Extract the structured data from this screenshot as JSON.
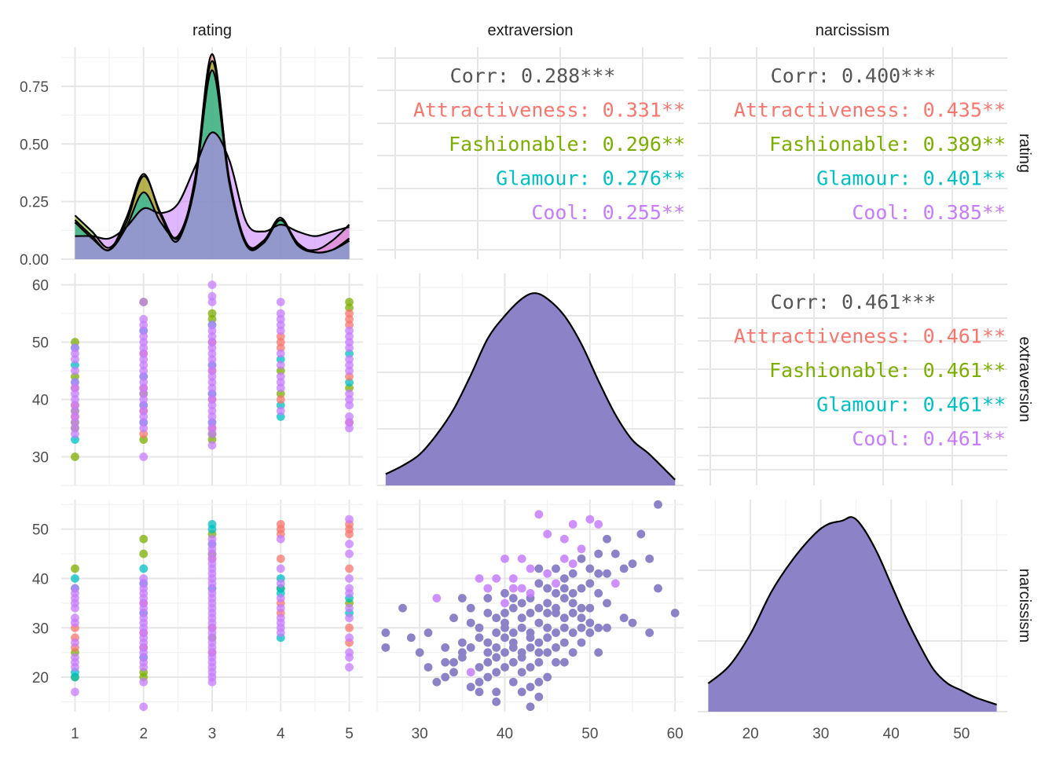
{
  "chart_data": {
    "type": "scatter",
    "matrix": "pairs",
    "variables": [
      "rating",
      "extraversion",
      "narcissism"
    ],
    "groups": [
      {
        "name": "Attractiveness",
        "color": "#F8766D"
      },
      {
        "name": "Fashionable",
        "color": "#7CAE00"
      },
      {
        "name": "Glamour",
        "color": "#00BFC4"
      },
      {
        "name": "Cool",
        "color": "#C77CFF"
      }
    ],
    "panel_fill": "#8C82C8",
    "grid": true,
    "axes": {
      "rating_x": {
        "lim": [
          0.8,
          5.2
        ],
        "ticks": [
          1,
          2,
          3,
          4,
          5
        ],
        "labels": [
          "1",
          "2",
          "3",
          "4",
          "5"
        ]
      },
      "rating_density_y": {
        "lim": [
          0,
          0.92
        ],
        "ticks": [
          0,
          0.25,
          0.5,
          0.75
        ],
        "labels": [
          "0.00",
          "0.25",
          "0.50",
          "0.75"
        ]
      },
      "extraversion_x": {
        "lim": [
          25,
          61
        ],
        "ticks": [
          30,
          40,
          50,
          60
        ],
        "labels": [
          "30",
          "40",
          "50",
          "60"
        ]
      },
      "extraversion_y": {
        "lim": [
          25,
          62
        ],
        "ticks": [
          30,
          40,
          50,
          60
        ],
        "labels": [
          "30",
          "40",
          "50",
          "60"
        ]
      },
      "narcissism_x": {
        "lim": [
          12.5,
          56.5
        ],
        "ticks": [
          20,
          30,
          40,
          50
        ],
        "labels": [
          "20",
          "30",
          "40",
          "50"
        ]
      },
      "narcissism_y": {
        "lim": [
          13,
          56
        ],
        "ticks": [
          20,
          30,
          40,
          50
        ],
        "labels": [
          "20",
          "30",
          "40",
          "50"
        ]
      }
    },
    "correlations": [
      {
        "pair": [
          "rating",
          "extraversion"
        ],
        "lines": [
          {
            "label": "Corr: 0.288***",
            "group": null
          },
          {
            "label": "Attractiveness: 0.331**",
            "group": "Attractiveness"
          },
          {
            "label": "Fashionable: 0.296**",
            "group": "Fashionable"
          },
          {
            "label": "Glamour: 0.276**",
            "group": "Glamour"
          },
          {
            "label": "Cool: 0.255**",
            "group": "Cool"
          }
        ]
      },
      {
        "pair": [
          "rating",
          "narcissism"
        ],
        "lines": [
          {
            "label": "Corr: 0.400***",
            "group": null
          },
          {
            "label": "Attractiveness: 0.435**",
            "group": "Attractiveness"
          },
          {
            "label": "Fashionable: 0.389**",
            "group": "Fashionable"
          },
          {
            "label": "Glamour: 0.401**",
            "group": "Glamour"
          },
          {
            "label": "Cool: 0.385**",
            "group": "Cool"
          }
        ]
      },
      {
        "pair": [
          "extraversion",
          "narcissism"
        ],
        "lines": [
          {
            "label": "Corr: 0.461***",
            "group": null
          },
          {
            "label": "Attractiveness: 0.461**",
            "group": "Attractiveness"
          },
          {
            "label": "Fashionable: 0.461**",
            "group": "Fashionable"
          },
          {
            "label": "Glamour: 0.461**",
            "group": "Glamour"
          },
          {
            "label": "Cool: 0.461**",
            "group": "Cool"
          }
        ]
      }
    ],
    "rating_density": {
      "x": [
        1,
        1.25,
        1.5,
        1.75,
        2,
        2.25,
        2.5,
        2.75,
        3,
        3.25,
        3.5,
        3.75,
        4,
        4.25,
        4.5,
        4.75,
        5
      ],
      "series": [
        {
          "group": "Attractiveness",
          "values": [
            0.17,
            0.1,
            0.04,
            0.18,
            0.37,
            0.19,
            0.08,
            0.35,
            0.89,
            0.34,
            0.06,
            0.07,
            0.17,
            0.06,
            0.04,
            0.08,
            0.15
          ]
        },
        {
          "group": "Fashionable",
          "values": [
            0.19,
            0.12,
            0.05,
            0.16,
            0.36,
            0.2,
            0.09,
            0.32,
            0.86,
            0.35,
            0.07,
            0.08,
            0.18,
            0.06,
            0.03,
            0.04,
            0.09
          ]
        },
        {
          "group": "Glamour",
          "values": [
            0.16,
            0.09,
            0.04,
            0.14,
            0.29,
            0.16,
            0.1,
            0.33,
            0.82,
            0.33,
            0.06,
            0.08,
            0.17,
            0.07,
            0.03,
            0.04,
            0.08
          ]
        },
        {
          "group": "Cool",
          "values": [
            0.1,
            0.1,
            0.09,
            0.14,
            0.22,
            0.2,
            0.24,
            0.4,
            0.55,
            0.43,
            0.16,
            0.12,
            0.15,
            0.12,
            0.1,
            0.12,
            0.14
          ]
        }
      ]
    },
    "extraversion_density": {
      "x": [
        26,
        28,
        30,
        32,
        34,
        36,
        38,
        40,
        42,
        43.5,
        45,
        47,
        49,
        51,
        53,
        55,
        57,
        60
      ],
      "y": [
        0.004,
        0.007,
        0.011,
        0.018,
        0.027,
        0.039,
        0.052,
        0.06,
        0.066,
        0.068,
        0.066,
        0.06,
        0.05,
        0.037,
        0.025,
        0.016,
        0.011,
        0.002
      ]
    },
    "narcissism_density": {
      "x": [
        14,
        17,
        20,
        23,
        26,
        29,
        31,
        33,
        34.5,
        36,
        38,
        40,
        42,
        44,
        46,
        48,
        50,
        52,
        55
      ],
      "y": [
        0.008,
        0.013,
        0.022,
        0.034,
        0.043,
        0.05,
        0.053,
        0.054,
        0.055,
        0.052,
        0.045,
        0.036,
        0.027,
        0.019,
        0.012,
        0.008,
        0.006,
        0.004,
        0.002
      ]
    },
    "rating_vs_extraversion": [
      {
        "x": 1,
        "group": "Fashionable",
        "y": [
          30,
          35,
          36,
          38,
          44,
          50
        ]
      },
      {
        "x": 1,
        "group": "Glamour",
        "y": [
          33,
          43,
          46,
          49
        ]
      },
      {
        "x": 1,
        "group": "Attractiveness",
        "y": [
          37,
          39,
          42
        ]
      },
      {
        "x": 1,
        "group": "Cool",
        "y": [
          34,
          35,
          36,
          37,
          38,
          39,
          40,
          41,
          42,
          43,
          45,
          47,
          48,
          49
        ]
      },
      {
        "x": 2,
        "group": "Fashionable",
        "y": [
          33,
          41,
          57
        ]
      },
      {
        "x": 2,
        "group": "Glamour",
        "y": [
          36,
          39,
          44,
          52
        ]
      },
      {
        "x": 2,
        "group": "Attractiveness",
        "y": [
          34,
          38,
          42,
          48
        ]
      },
      {
        "x": 2,
        "group": "Cool",
        "y": [
          30,
          35,
          36,
          37,
          38,
          39,
          40,
          41,
          42,
          43,
          44,
          45,
          46,
          47,
          48,
          49,
          50,
          51,
          52,
          53,
          54,
          57
        ]
      },
      {
        "x": 3,
        "group": "Fashionable",
        "y": [
          33,
          34,
          54,
          55
        ]
      },
      {
        "x": 3,
        "group": "Glamour",
        "y": [
          36,
          41,
          46,
          53
        ]
      },
      {
        "x": 3,
        "group": "Attractiveness",
        "y": [
          35,
          40,
          45,
          50
        ]
      },
      {
        "x": 3,
        "group": "Cool",
        "y": [
          32,
          34,
          35,
          36,
          37,
          38,
          39,
          40,
          41,
          42,
          43,
          44,
          45,
          46,
          47,
          48,
          49,
          50,
          51,
          52,
          53,
          57,
          58,
          60
        ]
      },
      {
        "x": 4,
        "group": "Fashionable",
        "y": [
          41,
          45
        ]
      },
      {
        "x": 4,
        "group": "Glamour",
        "y": [
          37,
          39,
          47
        ]
      },
      {
        "x": 4,
        "group": "Attractiveness",
        "y": [
          40,
          49,
          50,
          51
        ]
      },
      {
        "x": 4,
        "group": "Cool",
        "y": [
          38,
          42,
          43,
          44,
          46,
          48,
          52,
          53,
          54,
          55,
          57
        ]
      },
      {
        "x": 5,
        "group": "Fashionable",
        "y": [
          42,
          56,
          57
        ]
      },
      {
        "x": 5,
        "group": "Glamour",
        "y": [
          43,
          48
        ]
      },
      {
        "x": 5,
        "group": "Attractiveness",
        "y": [
          36,
          44,
          53,
          54,
          55
        ]
      },
      {
        "x": 5,
        "group": "Cool",
        "y": [
          35,
          36,
          37,
          39,
          40,
          41,
          45,
          46,
          47,
          49,
          50,
          51,
          52
        ]
      }
    ],
    "rating_vs_narcissism": [
      {
        "x": 1,
        "group": "Fashionable",
        "y": [
          20,
          25,
          42
        ]
      },
      {
        "x": 1,
        "group": "Glamour",
        "y": [
          20,
          21,
          38,
          40
        ]
      },
      {
        "x": 1,
        "group": "Attractiveness",
        "y": [
          26,
          28,
          30
        ]
      },
      {
        "x": 1,
        "group": "Cool",
        "y": [
          17,
          22,
          23,
          24,
          27,
          31,
          32,
          34,
          35,
          36,
          37,
          38
        ]
      },
      {
        "x": 2,
        "group": "Fashionable",
        "y": [
          20,
          21,
          45,
          48
        ]
      },
      {
        "x": 2,
        "group": "Glamour",
        "y": [
          24,
          33,
          39,
          42
        ]
      },
      {
        "x": 2,
        "group": "Attractiveness",
        "y": [
          26,
          29,
          35
        ]
      },
      {
        "x": 2,
        "group": "Cool",
        "y": [
          14,
          19,
          22,
          23,
          24,
          25,
          26,
          27,
          28,
          29,
          30,
          31,
          32,
          33,
          34,
          35,
          36,
          37,
          38,
          39,
          40
        ]
      },
      {
        "x": 3,
        "group": "Fashionable",
        "y": [
          28,
          45,
          49
        ]
      },
      {
        "x": 3,
        "group": "Glamour",
        "y": [
          38,
          47,
          50,
          51
        ]
      },
      {
        "x": 3,
        "group": "Attractiveness",
        "y": [
          25,
          30,
          44
        ]
      },
      {
        "x": 3,
        "group": "Cool",
        "y": [
          19,
          20,
          21,
          22,
          23,
          24,
          25,
          26,
          27,
          28,
          29,
          30,
          31,
          32,
          33,
          34,
          35,
          36,
          37,
          38,
          39,
          40,
          41,
          42,
          43,
          44,
          45,
          46,
          47,
          48
        ]
      },
      {
        "x": 4,
        "group": "Fashionable",
        "y": [
          38
        ]
      },
      {
        "x": 4,
        "group": "Glamour",
        "y": [
          28,
          37,
          38,
          40
        ]
      },
      {
        "x": 4,
        "group": "Attractiveness",
        "y": [
          33,
          35,
          44,
          49,
          50,
          51
        ]
      },
      {
        "x": 4,
        "group": "Cool",
        "y": [
          29,
          30,
          31,
          32,
          34,
          36,
          39,
          42,
          48
        ]
      },
      {
        "x": 5,
        "group": "Fashionable",
        "y": [
          35
        ]
      },
      {
        "x": 5,
        "group": "Glamour",
        "y": [
          33,
          36
        ]
      },
      {
        "x": 5,
        "group": "Attractiveness",
        "y": [
          27,
          30,
          42,
          49,
          50,
          51
        ]
      },
      {
        "x": 5,
        "group": "Cool",
        "y": [
          22,
          24,
          25,
          28,
          32,
          34,
          37,
          38,
          40,
          45,
          47,
          52
        ]
      }
    ],
    "extraversion_vs_narcissism": {
      "x": [
        26,
        26,
        28,
        29,
        30,
        31,
        31,
        32,
        32,
        33,
        33,
        33,
        34,
        34,
        34,
        35,
        35,
        35,
        35,
        36,
        36,
        36,
        36,
        36,
        37,
        37,
        37,
        37,
        37,
        37,
        38,
        38,
        38,
        38,
        38,
        38,
        38,
        39,
        39,
        39,
        39,
        39,
        39,
        39,
        39,
        40,
        40,
        40,
        40,
        40,
        40,
        40,
        40,
        40,
        41,
        41,
        41,
        41,
        41,
        41,
        41,
        41,
        41,
        42,
        42,
        42,
        42,
        42,
        42,
        42,
        42,
        42,
        43,
        43,
        43,
        43,
        43,
        43,
        43,
        43,
        43,
        43,
        44,
        44,
        44,
        44,
        44,
        44,
        44,
        44,
        44,
        44,
        45,
        45,
        45,
        45,
        45,
        45,
        45,
        45,
        45,
        46,
        46,
        46,
        46,
        46,
        46,
        46,
        46,
        47,
        47,
        47,
        47,
        47,
        47,
        47,
        47,
        47,
        48,
        48,
        48,
        48,
        48,
        48,
        48,
        48,
        49,
        49,
        49,
        49,
        49,
        49,
        49,
        50,
        50,
        50,
        50,
        50,
        50,
        51,
        51,
        51,
        51,
        51,
        51,
        52,
        52,
        52,
        52,
        53,
        53,
        54,
        54,
        55,
        55,
        56,
        57,
        57,
        58,
        58,
        60
      ],
      "y": [
        26,
        29,
        34,
        28,
        25,
        22,
        29,
        19,
        36,
        20,
        23,
        26,
        21,
        23,
        32,
        24,
        25,
        27,
        36,
        18,
        21,
        26,
        31,
        34,
        17,
        19,
        22,
        28,
        30,
        40,
        20,
        23,
        25,
        27,
        33,
        36,
        38,
        15,
        17,
        21,
        24,
        26,
        29,
        32,
        40,
        22,
        25,
        28,
        30,
        31,
        33,
        35,
        37,
        44,
        19,
        23,
        26,
        27,
        29,
        34,
        36,
        38,
        40,
        17,
        21,
        24,
        25,
        30,
        32,
        35,
        38,
        44,
        14,
        18,
        22,
        26,
        28,
        29,
        33,
        36,
        37,
        42,
        16,
        19,
        23,
        25,
        27,
        31,
        34,
        39,
        42,
        53,
        20,
        25,
        28,
        30,
        33,
        35,
        38,
        41,
        49,
        23,
        26,
        29,
        33,
        34,
        37,
        39,
        42,
        23,
        27,
        30,
        32,
        36,
        38,
        40,
        44,
        48,
        25,
        29,
        33,
        35,
        37,
        41,
        43,
        51,
        27,
        30,
        32,
        34,
        38,
        44,
        46,
        29,
        31,
        34,
        39,
        42,
        52,
        25,
        30,
        37,
        41,
        45,
        51,
        30,
        35,
        41,
        48,
        39,
        45,
        32,
        42,
        31,
        43,
        49,
        29,
        44,
        38,
        55,
        33
      ]
    },
    "extraversion_vs_narcissism_purple_idx": [
      8,
      20,
      29,
      36,
      44,
      51,
      53,
      61,
      62,
      70,
      71,
      80,
      81,
      91,
      99,
      100,
      107,
      116,
      117,
      124,
      125,
      132,
      138,
      144,
      149
    ]
  },
  "strips": {
    "top": [
      "rating",
      "extraversion",
      "narcissism"
    ],
    "right": [
      "rating",
      "extraversion",
      "narcissism"
    ]
  }
}
